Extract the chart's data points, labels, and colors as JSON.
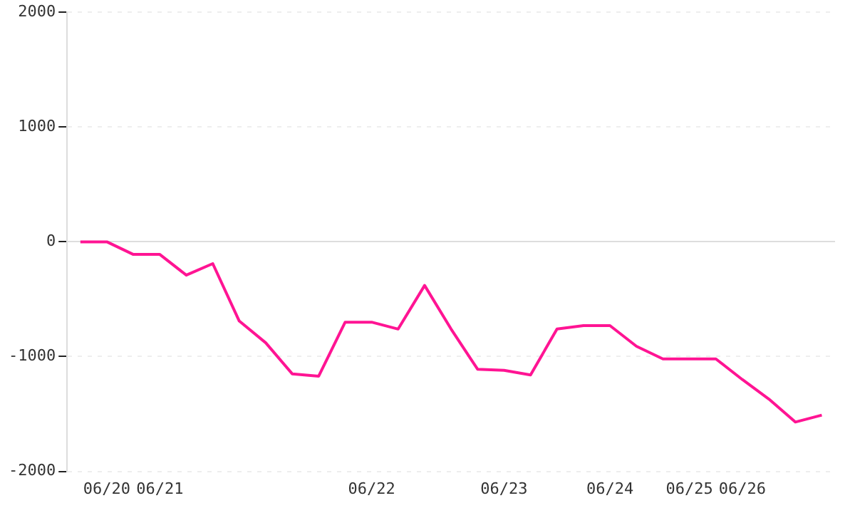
{
  "chart_data": {
    "type": "line",
    "categories": [
      null,
      "06/20",
      null,
      "06/21",
      null,
      null,
      null,
      null,
      null,
      null,
      null,
      "06/22",
      null,
      null,
      null,
      null,
      "06/23",
      null,
      null,
      null,
      "06/24",
      null,
      null,
      "06/25",
      null,
      "06/26",
      null,
      null,
      null
    ],
    "series": [
      {
        "color": "#ff1493",
        "values": [
          0,
          0,
          -110,
          -110,
          -290,
          -190,
          -690,
          -880,
          -1150,
          -1170,
          -700,
          -700,
          -760,
          -380,
          -760,
          -1110,
          -1120,
          -1160,
          -760,
          -730,
          -730,
          -910,
          -1020,
          -1020,
          -1020,
          -1200,
          -1370,
          -1570,
          -1510
        ]
      }
    ],
    "ylim": [
      -2000,
      2000
    ],
    "yticks": [
      -2000,
      -1000,
      0,
      1000,
      2000
    ],
    "grid": "y",
    "marker": "none",
    "line_style": "solid",
    "legend": false
  }
}
